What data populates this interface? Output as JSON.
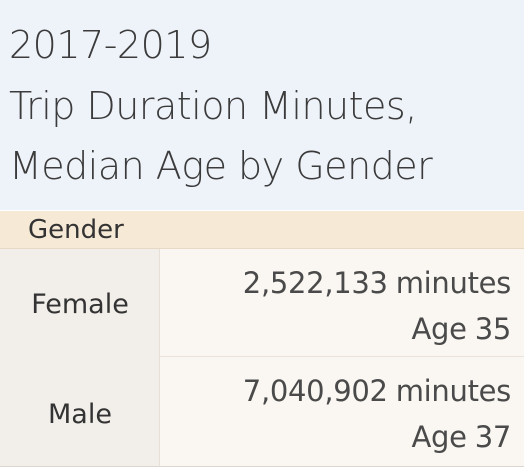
{
  "title": {
    "line1": "2017-2019",
    "line2": "Trip Duration Minutes,",
    "line3": "Median Age by Gender"
  },
  "table": {
    "column_header": "Gender",
    "rows": [
      {
        "gender": "Female",
        "minutes_value": "2,522,133",
        "minutes_unit": "minutes",
        "age_label": "Age",
        "age_value": "35"
      },
      {
        "gender": "Male",
        "minutes_value": "7,040,902",
        "minutes_unit": "minutes",
        "age_label": "Age",
        "age_value": "37"
      }
    ]
  },
  "colors": {
    "title_background": "#eef2f9",
    "header_background": "#f6e9d6",
    "row_header_background": "#f2eeea",
    "cell_background": "#faf7f2",
    "text": "#333333"
  }
}
